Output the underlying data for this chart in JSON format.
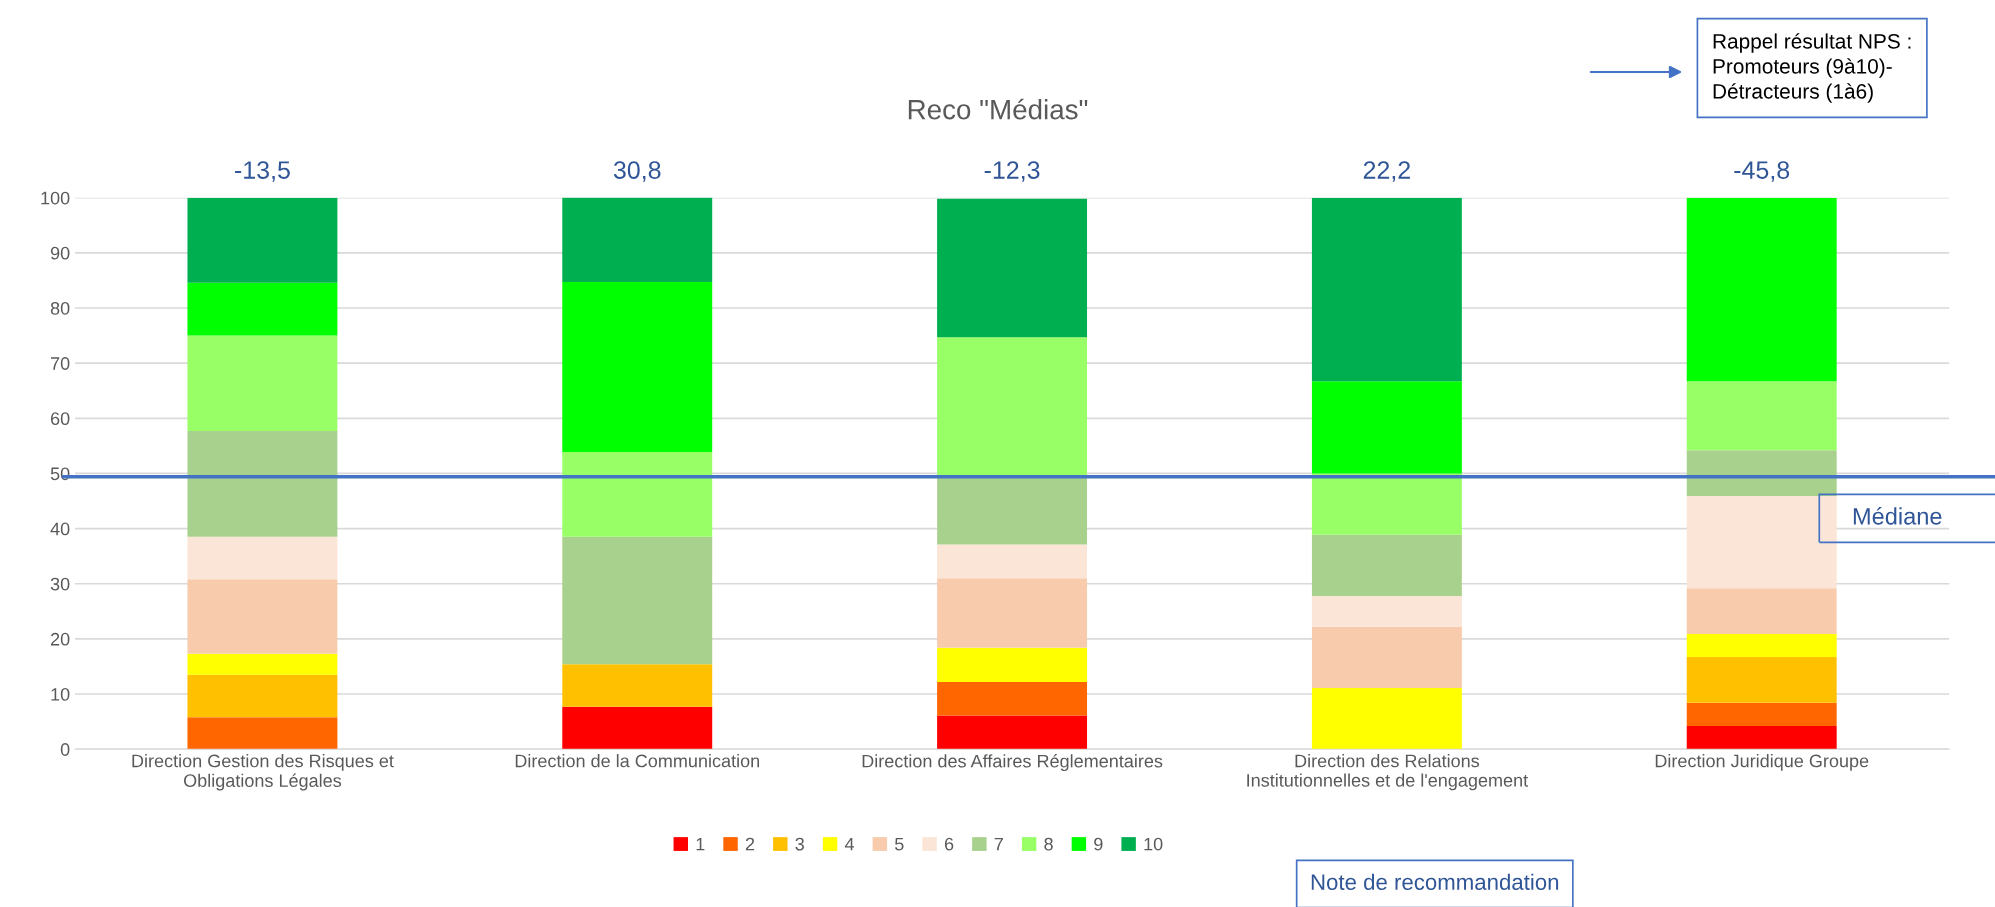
{
  "chart_data": {
    "type": "bar",
    "stacked": true,
    "title": "Reco \"Médias\"",
    "categories": [
      "Direction Gestion des Risques et\nObligations Légales",
      "Direction de la Communication",
      "Direction des Affaires Réglementaires",
      "Direction des Relations\nInstitutionnelles et de l'engagement",
      "Direction Juridique Groupe"
    ],
    "series": [
      {
        "name": "1",
        "color": "#ff0000",
        "values": [
          0,
          7.7,
          6.1,
          0,
          4.2
        ]
      },
      {
        "name": "2",
        "color": "#ff6600",
        "values": [
          5.8,
          0,
          6.1,
          0,
          4.2
        ]
      },
      {
        "name": "3",
        "color": "#ffc000",
        "values": [
          7.7,
          7.7,
          0,
          0,
          8.3
        ]
      },
      {
        "name": "4",
        "color": "#ffff00",
        "values": [
          3.8,
          0,
          6.2,
          11.1,
          4.2
        ]
      },
      {
        "name": "5",
        "color": "#f8cbad",
        "values": [
          13.5,
          0,
          12.6,
          11.1,
          8.3
        ]
      },
      {
        "name": "6",
        "color": "#fbe5d6",
        "values": [
          7.7,
          0,
          6.1,
          5.6,
          16.7
        ]
      },
      {
        "name": "7",
        "color": "#a9d18e",
        "values": [
          19.2,
          23.1,
          12.5,
          11.1,
          8.3
        ]
      },
      {
        "name": "8",
        "color": "#99ff66",
        "values": [
          17.3,
          15.4,
          25.1,
          11.1,
          12.5
        ]
      },
      {
        "name": "9",
        "color": "#00ff00",
        "values": [
          9.6,
          30.8,
          0,
          16.7,
          33.3
        ]
      },
      {
        "name": "10",
        "color": "#00b050",
        "values": [
          15.4,
          15.4,
          25.1,
          33.3,
          0
        ]
      }
    ],
    "ylim": [
      0,
      100
    ],
    "yticks": [
      0,
      10,
      20,
      30,
      40,
      50,
      60,
      70,
      80,
      90,
      100
    ],
    "grid": "y",
    "legend": "bottom",
    "ref_lines": [
      {
        "axis": "y",
        "value": 49.4,
        "label": "Médiane",
        "color": "#4472c4"
      }
    ],
    "annotations": [
      {
        "text": "-13,5",
        "x": "Direction Gestion des Risques et\nObligations Légales",
        "y": 100
      },
      {
        "text": "30,8",
        "x": "Direction de la Communication",
        "y": 100
      },
      {
        "text": "-12,3",
        "x": "Direction des Affaires Réglementaires",
        "y": 100
      },
      {
        "text": "22,2",
        "x": "Direction des Relations\nInstitutionnelles et de l'engagement",
        "y": 100
      },
      {
        "text": "-45,8",
        "x": "Direction Juridique Groupe",
        "y": 100
      },
      "Rappel résultat NPS :\nPromoteurs (9à10)-\nDétracteurs (1à6)",
      "Note de recommandation"
    ]
  }
}
